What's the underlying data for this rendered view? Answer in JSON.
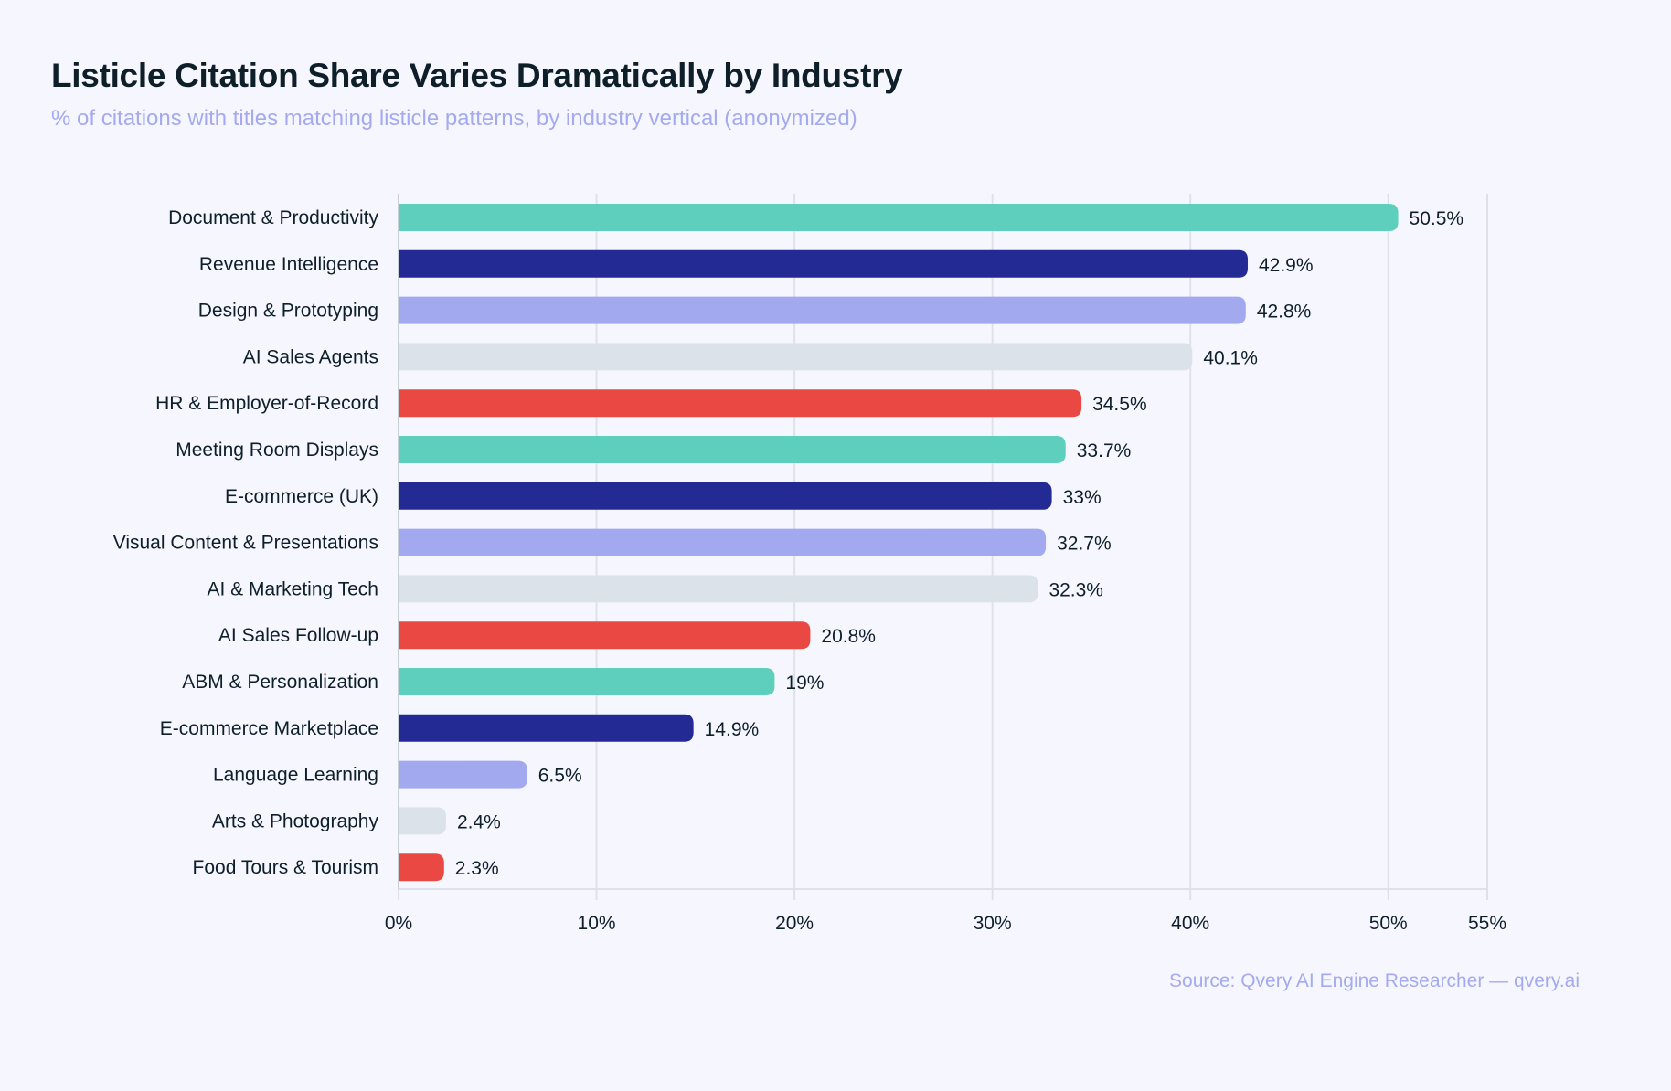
{
  "header": {
    "title": "Listicle Citation Share Varies Dramatically by Industry",
    "subtitle": "% of citations with titles matching listicle patterns, by industry vertical (anonymized)"
  },
  "footer": {
    "source": "Source: Qvery AI Engine Researcher — qvery.ai"
  },
  "chart_data": {
    "type": "bar",
    "orientation": "horizontal",
    "title": "Listicle Citation Share Varies Dramatically by Industry",
    "subtitle": "% of citations with titles matching listicle patterns, by industry vertical (anonymized)",
    "xlabel": "",
    "ylabel": "",
    "xlim": [
      0,
      55
    ],
    "xticks": [
      0,
      10,
      20,
      30,
      40,
      50,
      55
    ],
    "xtick_labels": [
      "0%",
      "10%",
      "20%",
      "30%",
      "40%",
      "50%",
      "55%"
    ],
    "grid": "vertical",
    "legend": "none",
    "categories": [
      "Document & Productivity",
      "Revenue Intelligence",
      "Design & Prototyping",
      "AI Sales Agents",
      "HR & Employer-of-Record",
      "Meeting Room Displays",
      "E-commerce (UK)",
      "Visual Content & Presentations",
      "AI & Marketing Tech",
      "AI Sales Follow-up",
      "ABM & Personalization",
      "E-commerce Marketplace",
      "Language Learning",
      "Arts & Photography",
      "Food Tours & Tourism"
    ],
    "values": [
      50.5,
      42.9,
      42.8,
      40.1,
      34.5,
      33.7,
      33,
      32.7,
      32.3,
      20.8,
      19,
      14.9,
      6.5,
      2.4,
      2.3
    ],
    "value_labels": [
      "50.5%",
      "42.9%",
      "42.8%",
      "40.1%",
      "34.5%",
      "33.7%",
      "33%",
      "32.7%",
      "32.3%",
      "20.8%",
      "19%",
      "14.9%",
      "6.5%",
      "2.4%",
      "2.3%"
    ],
    "colors": [
      "#5fcfbd",
      "#232a94",
      "#a3a9ee",
      "#dce2ea",
      "#ea4943",
      "#5fcfbd",
      "#232a94",
      "#a3a9ee",
      "#dce2ea",
      "#ea4943",
      "#5fcfbd",
      "#232a94",
      "#a3a9ee",
      "#dce2ea",
      "#ea4943"
    ]
  }
}
